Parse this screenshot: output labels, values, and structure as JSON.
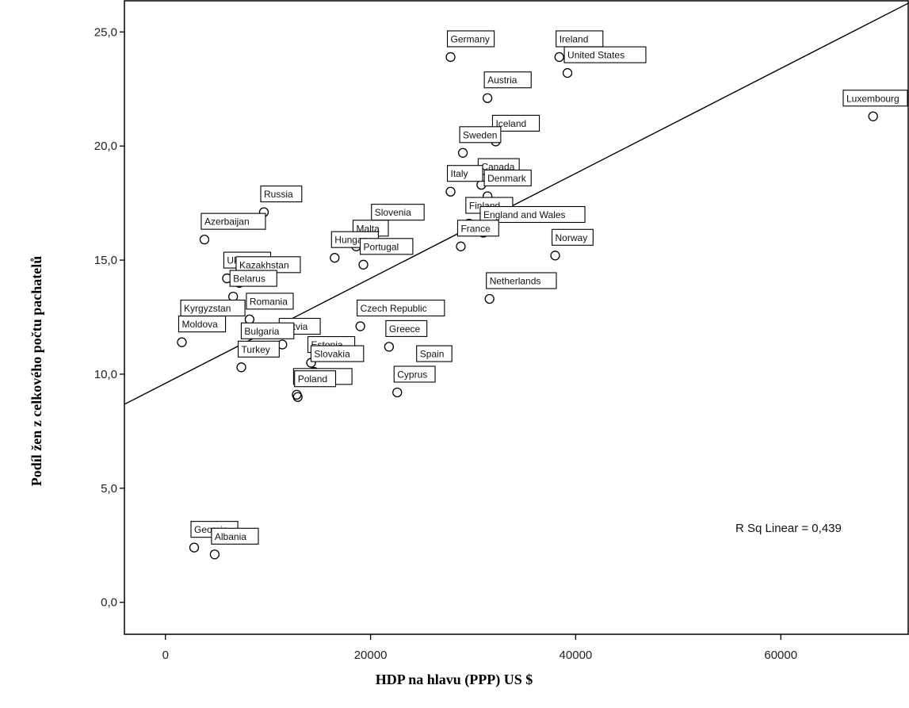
{
  "chart_data": {
    "type": "scatter",
    "title": "",
    "xlabel": "HDP na hlavu (PPP) US $",
    "ylabel": "Podíl žen z celkového počtu pachatelů",
    "xlim": [
      -4000,
      72500
    ],
    "ylim": [
      -1.4,
      26.4
    ],
    "x_ticks": [
      "0",
      "20000",
      "40000",
      "60000"
    ],
    "x_tick_values": [
      0,
      20000,
      40000,
      60000
    ],
    "y_ticks": [
      "0,0",
      "5,0",
      "10,0",
      "15,0",
      "20,0",
      "25,0"
    ],
    "y_tick_values": [
      0,
      5,
      10,
      15,
      20,
      25
    ],
    "fit_line": {
      "intercept": 9.6,
      "slope": 0.00023
    },
    "annotation": "R Sq Linear = 0,439",
    "grid": false,
    "legend": "none",
    "points": [
      {
        "label": "Germany",
        "x": 27800,
        "y": 23.9
      },
      {
        "label": "Ireland",
        "x": 38400,
        "y": 23.9
      },
      {
        "label": "United States",
        "x": 39200,
        "y": 23.2
      },
      {
        "label": "Austria",
        "x": 31400,
        "y": 22.1
      },
      {
        "label": "Luxembourg",
        "x": 69000,
        "y": 21.3
      },
      {
        "label": "Iceland",
        "x": 32200,
        "y": 20.2
      },
      {
        "label": "Sweden",
        "x": 29000,
        "y": 19.7
      },
      {
        "label": "Canada",
        "x": 30800,
        "y": 18.3
      },
      {
        "label": "Italy",
        "x": 27800,
        "y": 18.0
      },
      {
        "label": "Denmark",
        "x": 31400,
        "y": 17.8
      },
      {
        "label": "Russia",
        "x": 9600,
        "y": 17.1
      },
      {
        "label": "Finland",
        "x": 29600,
        "y": 16.6
      },
      {
        "label": "Slovenia",
        "x": 20400,
        "y": 16.3
      },
      {
        "label": "England and Wales",
        "x": 31000,
        "y": 16.2
      },
      {
        "label": "Azerbaijan",
        "x": 3800,
        "y": 15.9
      },
      {
        "label": "Malta",
        "x": 18600,
        "y": 15.6
      },
      {
        "label": "France",
        "x": 28800,
        "y": 15.6
      },
      {
        "label": "Norway",
        "x": 38000,
        "y": 15.2
      },
      {
        "label": "Hungary",
        "x": 16500,
        "y": 15.1
      },
      {
        "label": "Portugal",
        "x": 19300,
        "y": 14.8
      },
      {
        "label": "Ukraine",
        "x": 6000,
        "y": 14.2
      },
      {
        "label": "Kazakhstan",
        "x": 7200,
        "y": 14.0
      },
      {
        "label": "Belarus",
        "x": 6600,
        "y": 13.4
      },
      {
        "label": "Netherlands",
        "x": 31600,
        "y": 13.3
      },
      {
        "label": "Romania",
        "x": 8200,
        "y": 12.4
      },
      {
        "label": "Kyrgyzstan",
        "x": 1800,
        "y": 12.1
      },
      {
        "label": "Czech Republic",
        "x": 19000,
        "y": 12.1
      },
      {
        "label": "Moldova",
        "x": 1600,
        "y": 11.4
      },
      {
        "label": "Latvia",
        "x": 11400,
        "y": 11.3
      },
      {
        "label": "Greece",
        "x": 21800,
        "y": 11.2
      },
      {
        "label": "Bulgaria",
        "x": 7700,
        "y": 11.1
      },
      {
        "label": "Estonia",
        "x": 14200,
        "y": 10.5
      },
      {
        "label": "Turkey",
        "x": 7400,
        "y": 10.3
      },
      {
        "label": "Spain",
        "x": 24800,
        "y": 10.1
      },
      {
        "label": "Slovakia",
        "x": 14500,
        "y": 10.1
      },
      {
        "label": "Cyprus",
        "x": 22600,
        "y": 9.2
      },
      {
        "label": "Lithuania",
        "x": 12800,
        "y": 9.1
      },
      {
        "label": "Poland",
        "x": 12900,
        "y": 9.0
      },
      {
        "label": "Georgia",
        "x": 2800,
        "y": 2.4
      },
      {
        "label": "Albania",
        "x": 4800,
        "y": 2.1
      }
    ]
  }
}
